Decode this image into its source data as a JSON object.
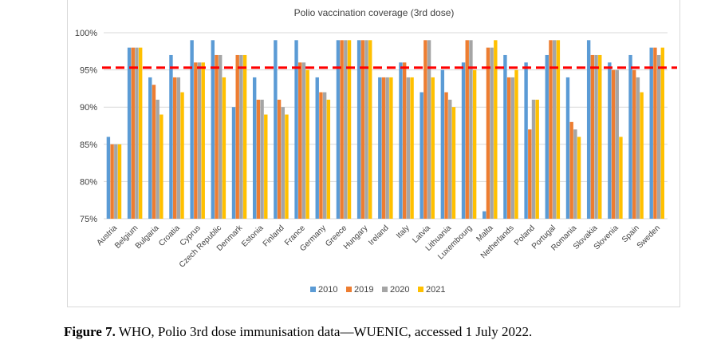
{
  "chart_data": {
    "type": "bar",
    "title": "Polio vaccination coverage (3rd dose)",
    "xlabel": "",
    "ylabel": "",
    "ylim": [
      75,
      100
    ],
    "yticks": [
      75,
      80,
      85,
      90,
      95,
      100
    ],
    "ytick_labels": [
      "75%",
      "80%",
      "85%",
      "90%",
      "95%",
      "100%"
    ],
    "grid": true,
    "legend_position": "bottom",
    "reference_line": {
      "value": 95.3,
      "style": "dashed",
      "color": "#ff0000"
    },
    "categories": [
      "Austria",
      "Belgium",
      "Bulgaria",
      "Croatia",
      "Cyprus",
      "Czech Republic",
      "Denmark",
      "Estonia",
      "Finland",
      "France",
      "Germany",
      "Greece",
      "Hungary",
      "Ireland",
      "Italy",
      "Latvia",
      "Lithuania",
      "Luxembourg",
      "Malta",
      "Netherlands",
      "Poland",
      "Portugal",
      "Romania",
      "Slovakia",
      "Slovenia",
      "Spain",
      "Sweden"
    ],
    "series": [
      {
        "name": "2010",
        "color": "#5b9bd5",
        "values": [
          86,
          98,
          94,
          97,
          99,
          99,
          90,
          94,
          99,
          99,
          94,
          99,
          99,
          94,
          96,
          92,
          95,
          96,
          76,
          97,
          96,
          97,
          94,
          99,
          96,
          97,
          98
        ]
      },
      {
        "name": "2019",
        "color": "#ed7d31",
        "values": [
          85,
          98,
          93,
          94,
          96,
          97,
          97,
          91,
          91,
          96,
          92,
          99,
          99,
          94,
          96,
          99,
          92,
          99,
          98,
          94,
          87,
          99,
          88,
          97,
          95,
          95,
          98
        ]
      },
      {
        "name": "2020",
        "color": "#a5a5a5",
        "values": [
          85,
          98,
          91,
          94,
          96,
          97,
          97,
          91,
          90,
          96,
          92,
          99,
          99,
          94,
          94,
          99,
          91,
          99,
          98,
          94,
          91,
          99,
          87,
          97,
          95,
          94,
          97
        ]
      },
      {
        "name": "2021",
        "color": "#ffc000",
        "values": [
          85,
          98,
          89,
          92,
          96,
          94,
          97,
          89,
          89,
          95,
          91,
          99,
          99,
          94,
          94,
          94,
          90,
          95,
          99,
          95,
          91,
          99,
          86,
          97,
          86,
          92,
          98
        ]
      }
    ]
  },
  "caption": {
    "label": "Figure 7.",
    "text": " WHO, Polio 3rd dose immunisation data—WUENIC, accessed 1 July 2022."
  }
}
